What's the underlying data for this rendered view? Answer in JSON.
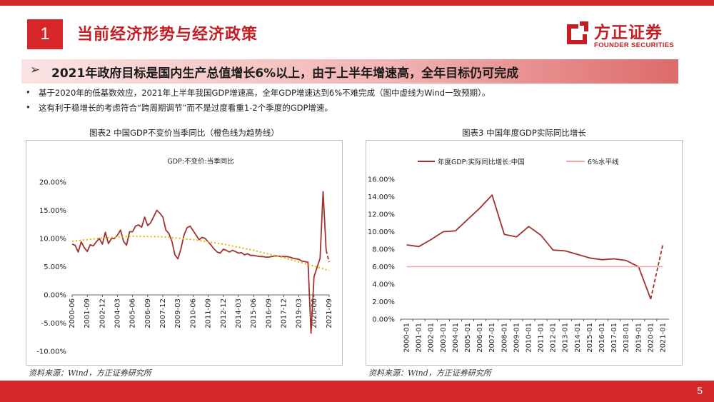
{
  "header": {
    "section_number": "1",
    "title": "当前经济形势与经济政策",
    "logo_cn": "方正证券",
    "logo_en": "FOUNDER SECURITIES"
  },
  "headline": {
    "arrow": "➢",
    "text": "2021年政府目标是国内生产总值增长6%以上，由于上半年增速高，全年目标仍可完成"
  },
  "bullets": [
    {
      "dot": "•",
      "text": "基于2020年的低基数效应，2021年上半年我国GDP增速高，全年GDP增速达到6%不难完成（图中虚线为Wind一致预期）。"
    },
    {
      "dot": "•",
      "text": "这有利于稳增长的考虑符合“跨周期调节”而不是过度看重1-2个季度的GDP增速。"
    }
  ],
  "colors": {
    "brand_red": "#d42a2a",
    "series_line": "#a0322e",
    "trend_line": "#e8b400",
    "reference_line": "#f4a7a0"
  },
  "charts": [
    {
      "caption": "图表2 中国GDP不变价当季同比（橙色线为趋势线）",
      "source": "资料来源：Wind，方正证券研究所"
    },
    {
      "caption": "图表3 中国年度GDP实际同比增长",
      "source": "资料来源：Wind，方正证券研究所"
    }
  ],
  "chart_data": [
    {
      "type": "line",
      "title": "GDP:不变价:当季同比",
      "xlabel": "",
      "ylabel": "",
      "ylim": [
        -10,
        20
      ],
      "y_ticks": [
        "20.00%",
        "15.00%",
        "10.00%",
        "5.00%",
        "0.00%",
        "-5.00%",
        "-10.00%"
      ],
      "x_ticks": [
        "2000-06",
        "2001-09",
        "2002-12",
        "2004-03",
        "2005-06",
        "2006-09",
        "2007-12",
        "2009-03",
        "2010-06",
        "2011-09",
        "2012-12",
        "2014-03",
        "2015-06",
        "2016-09",
        "2017-12",
        "2019-03",
        "2020-06",
        "2021-09"
      ],
      "grid": false,
      "legend": "none",
      "series": [
        {
          "name": "GDP:不变价:当季同比",
          "style": "solid",
          "x": [
            "2000-06",
            "2000-09",
            "2000-12",
            "2001-03",
            "2001-06",
            "2001-09",
            "2001-12",
            "2002-03",
            "2002-06",
            "2002-09",
            "2002-12",
            "2003-03",
            "2003-06",
            "2003-09",
            "2003-12",
            "2004-03",
            "2004-06",
            "2004-09",
            "2004-12",
            "2005-03",
            "2005-06",
            "2005-09",
            "2005-12",
            "2006-03",
            "2006-06",
            "2006-09",
            "2006-12",
            "2007-03",
            "2007-06",
            "2007-09",
            "2007-12",
            "2008-03",
            "2008-06",
            "2008-09",
            "2008-12",
            "2009-03",
            "2009-06",
            "2009-09",
            "2009-12",
            "2010-03",
            "2010-06",
            "2010-09",
            "2010-12",
            "2011-03",
            "2011-06",
            "2011-09",
            "2011-12",
            "2012-03",
            "2012-06",
            "2012-09",
            "2012-12",
            "2013-03",
            "2013-06",
            "2013-09",
            "2013-12",
            "2014-03",
            "2014-06",
            "2014-09",
            "2014-12",
            "2015-03",
            "2015-06",
            "2015-09",
            "2015-12",
            "2016-03",
            "2016-06",
            "2016-09",
            "2016-12",
            "2017-03",
            "2017-06",
            "2017-09",
            "2017-12",
            "2018-03",
            "2018-06",
            "2018-09",
            "2018-12",
            "2019-03",
            "2019-06",
            "2019-09",
            "2019-12",
            "2020-03",
            "2020-06",
            "2020-09",
            "2020-12",
            "2021-03",
            "2021-06"
          ],
          "values": [
            9.0,
            8.8,
            7.6,
            9.4,
            8.4,
            7.7,
            8.9,
            8.7,
            9.4,
            10.0,
            9.0,
            11.1,
            9.1,
            10.0,
            10.0,
            10.6,
            11.5,
            9.5,
            8.8,
            11.2,
            11.2,
            12.2,
            12.4,
            12.0,
            13.8,
            12.3,
            12.8,
            13.9,
            15.0,
            14.5,
            13.8,
            11.5,
            10.9,
            9.5,
            7.1,
            6.4,
            8.2,
            10.6,
            11.9,
            12.2,
            11.4,
            10.6,
            9.8,
            10.2,
            10.0,
            9.4,
            8.8,
            8.1,
            7.6,
            7.4,
            8.1,
            7.9,
            7.6,
            7.9,
            7.7,
            7.4,
            7.5,
            7.1,
            7.3,
            7.0,
            7.0,
            6.9,
            6.8,
            6.8,
            6.7,
            6.7,
            6.8,
            6.9,
            6.9,
            6.8,
            6.8,
            6.8,
            6.7,
            6.5,
            6.4,
            6.3,
            6.0,
            5.9,
            5.8,
            -6.8,
            3.2,
            4.9,
            6.5,
            18.3,
            7.9
          ]
        },
        {
          "name": "Wind一致预期",
          "style": "dashed",
          "x": [
            "2021-06",
            "2021-09"
          ],
          "values": [
            7.9,
            5.8
          ]
        },
        {
          "name": "趋势线",
          "style": "dotted",
          "x": [
            "2000-06",
            "2002-12",
            "2005-06",
            "2007-12",
            "2010-06",
            "2012-12",
            "2015-06",
            "2017-12",
            "2020-06",
            "2021-09"
          ],
          "values": [
            9.5,
            10.1,
            10.4,
            10.3,
            9.8,
            9.0,
            7.9,
            6.6,
            5.1,
            4.3
          ]
        }
      ]
    },
    {
      "type": "line",
      "title": "",
      "xlabel": "",
      "ylabel": "",
      "ylim": [
        0,
        16
      ],
      "y_ticks": [
        "16.00%",
        "14.00%",
        "12.00%",
        "10.00%",
        "8.00%",
        "6.00%",
        "4.00%",
        "2.00%",
        "0.00%"
      ],
      "categories": [
        "2000-01",
        "2001-01",
        "2002-01",
        "2003-01",
        "2004-01",
        "2005-01",
        "2006-01",
        "2007-01",
        "2008-01",
        "2009-01",
        "2010-01",
        "2011-01",
        "2012-01",
        "2013-01",
        "2014-01",
        "2015-01",
        "2016-01",
        "2017-01",
        "2018-01",
        "2019-01",
        "2020-01",
        "2021-01"
      ],
      "grid": false,
      "legend": "top",
      "series": [
        {
          "name": "年度GDP:实际同比增长:中国",
          "style": "solid",
          "values": [
            8.5,
            8.3,
            9.1,
            10.0,
            10.1,
            11.4,
            12.7,
            14.2,
            9.7,
            9.4,
            10.6,
            9.6,
            7.9,
            7.8,
            7.4,
            7.0,
            6.8,
            6.9,
            6.7,
            6.0,
            2.3,
            null
          ]
        },
        {
          "name": "Wind一致预期",
          "style": "dashed",
          "values": [
            null,
            null,
            null,
            null,
            null,
            null,
            null,
            null,
            null,
            null,
            null,
            null,
            null,
            null,
            null,
            null,
            null,
            null,
            null,
            null,
            2.3,
            8.6
          ]
        },
        {
          "name": "6%水平线",
          "style": "solid",
          "values": [
            6,
            6,
            6,
            6,
            6,
            6,
            6,
            6,
            6,
            6,
            6,
            6,
            6,
            6,
            6,
            6,
            6,
            6,
            6,
            6,
            6,
            6
          ]
        }
      ]
    }
  ],
  "footer": {
    "page_number": "5"
  }
}
